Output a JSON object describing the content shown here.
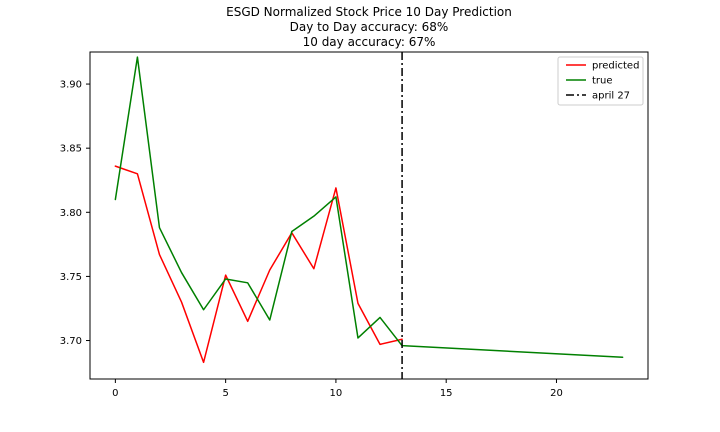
{
  "chart_data": {
    "type": "line",
    "title_lines": [
      "ESGD Normalized Stock Price 10 Day Prediction",
      "Day to Day accuracy: 68%",
      "10 day accuracy: 67%"
    ],
    "xlabel": "",
    "ylabel": "",
    "xlim": [
      -1.15,
      24.15
    ],
    "ylim": [
      3.67,
      3.925
    ],
    "x_ticks": [
      0,
      5,
      10,
      15,
      20
    ],
    "y_ticks": [
      3.7,
      3.75,
      3.8,
      3.85,
      3.9
    ],
    "x_tick_labels": [
      "0",
      "5",
      "10",
      "15",
      "20"
    ],
    "y_tick_labels": [
      "3.70",
      "3.75",
      "3.80",
      "3.85",
      "3.90"
    ],
    "grid": false,
    "legend_position": "top-right",
    "series": [
      {
        "name": "predicted",
        "color": "#ff0000",
        "line_style": "solid",
        "x": [
          0,
          1,
          2,
          3,
          4,
          5,
          6,
          7,
          8,
          9,
          10,
          11,
          12,
          13
        ],
        "y": [
          3.836,
          3.83,
          3.767,
          3.73,
          3.683,
          3.751,
          3.715,
          3.755,
          3.784,
          3.756,
          3.819,
          3.729,
          3.697,
          3.701
        ]
      },
      {
        "name": "true",
        "color": "#008000",
        "line_style": "solid",
        "x": [
          0,
          1,
          2,
          3,
          4,
          5,
          6,
          7,
          8,
          9,
          10,
          11,
          12,
          13,
          23
        ],
        "y": [
          3.81,
          3.921,
          3.788,
          3.753,
          3.724,
          3.748,
          3.745,
          3.716,
          3.785,
          3.797,
          3.812,
          3.702,
          3.718,
          3.696,
          3.687
        ]
      }
    ],
    "reference_lines": [
      {
        "name": "april 27",
        "orientation": "vertical",
        "x": 13,
        "color": "#000000",
        "line_style": "dashdot"
      }
    ],
    "legend": [
      {
        "label": "predicted",
        "color": "#ff0000",
        "line_style": "solid"
      },
      {
        "label": "true",
        "color": "#008000",
        "line_style": "solid"
      },
      {
        "label": "april 27",
        "color": "#000000",
        "line_style": "dashdot"
      }
    ]
  }
}
